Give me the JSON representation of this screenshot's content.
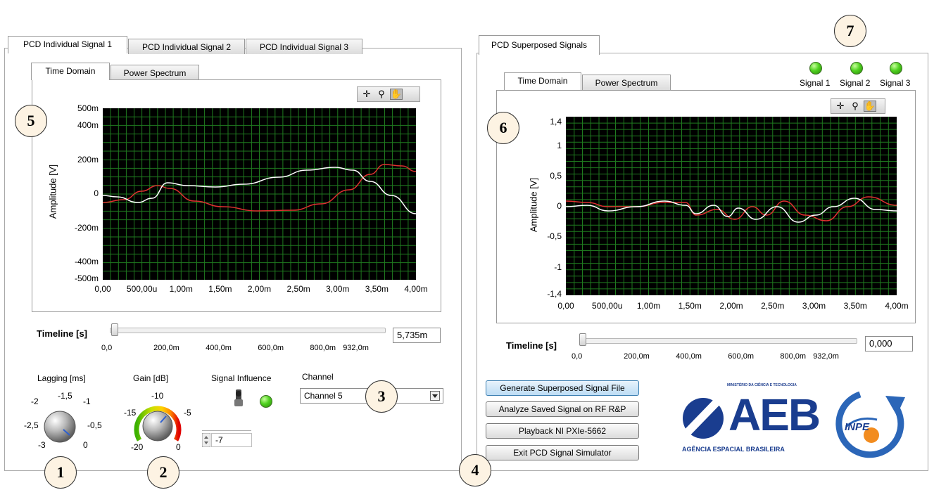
{
  "left_panel": {
    "tabs": [
      "PCD Individual Signal 1",
      "PCD Individual Signal 2",
      "PCD Individual Signal 3"
    ],
    "sub_tabs": [
      "Time Domain",
      "Power Spectrum"
    ],
    "graph": {
      "y_label": "Amplitude [V]",
      "y_ticks": [
        "500m",
        "400m",
        "200m",
        "0",
        "-200m",
        "-400m",
        "-500m"
      ],
      "x_ticks": [
        "0,00",
        "500,00u",
        "1,00m",
        "1,50m",
        "2,00m",
        "2,50m",
        "3,00m",
        "3,50m",
        "4,00m"
      ]
    },
    "timeline": {
      "label": "Timeline [s]",
      "value": "5,735m",
      "ticks": [
        "0,0",
        "200,0m",
        "400,0m",
        "600,0m",
        "800,0m",
        "932,0m"
      ],
      "position_fraction": 0.006
    },
    "lagging": {
      "label": "Lagging [ms]",
      "scale": [
        "-2",
        "-1,5",
        "-1",
        "-2,5",
        "-0,5",
        "-3",
        "0"
      ]
    },
    "gain": {
      "label": "Gain  [dB]",
      "scale": [
        "-10",
        "-15",
        "-5",
        "-20",
        "0"
      ]
    },
    "signal_influence": {
      "label": "Signal Influence",
      "value": "-7"
    },
    "channel": {
      "label": "Channel",
      "selected": "Channel 5"
    }
  },
  "right_panel": {
    "tab": "PCD Superposed Signals",
    "sub_tabs": [
      "Time Domain",
      "Power Spectrum"
    ],
    "leds": [
      "Signal 1",
      "Signal 2",
      "Signal 3"
    ],
    "graph": {
      "y_label": "Amplitude [V]",
      "y_ticks": [
        "1,4",
        "1",
        "0,5",
        "0",
        "-0,5",
        "-1",
        "-1,4"
      ],
      "x_ticks": [
        "0,00",
        "500,00u",
        "1,00m",
        "1,50m",
        "2,00m",
        "2,50m",
        "3,00m",
        "3,50m",
        "4,00m"
      ]
    },
    "timeline": {
      "label": "Timeline [s]",
      "value": "0,000",
      "ticks": [
        "0,0",
        "200,0m",
        "400,0m",
        "600,0m",
        "800,0m",
        "932,0m"
      ],
      "position_fraction": 0.0
    },
    "buttons": [
      "Generate Superposed Signal File",
      "Analyze Saved Signal on RF R&P",
      "Playback NI PXIe-5662",
      "Exit PCD Signal Simulator"
    ]
  },
  "logos": {
    "aeb": {
      "ministry": "MINISTÉRIO DA CIÊNCIA E TECNOLOGIA",
      "name": "AEB",
      "subtitle": "AGÊNCIA ESPACIAL BRASILEIRA"
    },
    "inpe": {
      "name": "INPE"
    }
  },
  "callouts": [
    "1",
    "2",
    "3",
    "4",
    "5",
    "6",
    "7"
  ],
  "colors": {
    "plot_bg": "#000000",
    "grid": "#1f7a1f",
    "trace_white": "#ffffff",
    "trace_red": "#e03030",
    "led_green": "#4fd11f"
  },
  "icons": [
    "crosshair-icon",
    "zoom-icon",
    "hand-icon",
    "dropdown-arrow-icon",
    "toggle-switch-icon",
    "stepper-icon"
  ]
}
